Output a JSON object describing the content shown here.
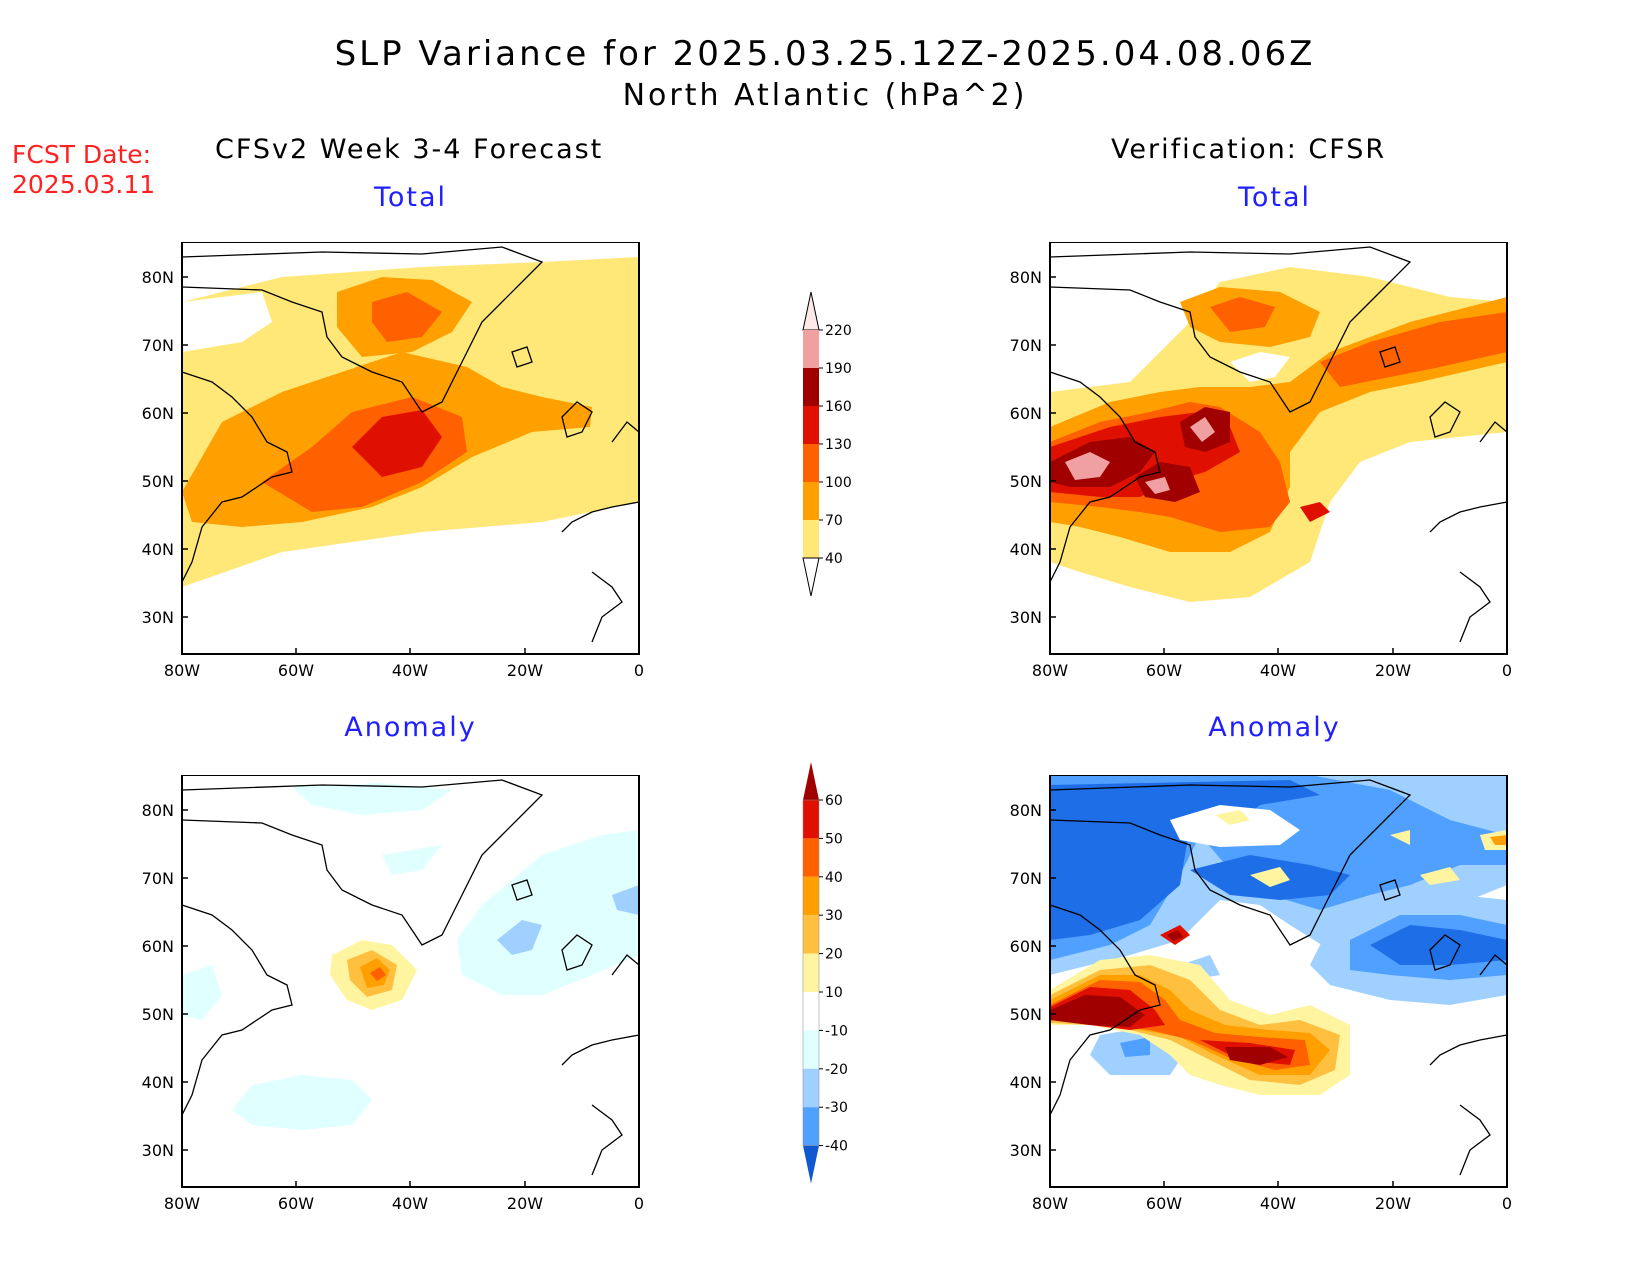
{
  "header": {
    "title": "SLP Variance for 2025.03.25.12Z-2025.04.08.06Z",
    "subtitle": "North Atlantic (hPa^2)"
  },
  "fcst": {
    "line1": "FCST Date:",
    "line2": "2025.03.11"
  },
  "columns": {
    "left": "CFSv2 Week 3-4 Forecast",
    "right": "Verification: CFSR"
  },
  "panels": {
    "fc_total": {
      "label": "Total"
    },
    "ver_total": {
      "label": "Total"
    },
    "fc_anom": {
      "label": "Anomaly"
    },
    "ver_anom": {
      "label": "Anomaly"
    }
  },
  "axes": {
    "lat_labels": [
      "80N",
      "70N",
      "60N",
      "50N",
      "40N",
      "30N"
    ],
    "lon_labels": [
      "80W",
      "60W",
      "40W",
      "20W",
      "0"
    ]
  },
  "colorbars": {
    "total": {
      "levels": [
        "40",
        "70",
        "100",
        "130",
        "160",
        "190",
        "220"
      ],
      "colors": [
        "#ffe878",
        "#ffa000",
        "#ff6000",
        "#e01000",
        "#a00000",
        "#f0a0a0",
        "#ffe8e8"
      ]
    },
    "anomaly": {
      "levels": [
        "60",
        "50",
        "40",
        "30",
        "20",
        "10",
        "-10",
        "-20",
        "-30",
        "-40"
      ],
      "colors": [
        "#a00000",
        "#e01000",
        "#ff6000",
        "#ffa000",
        "#ffc040",
        "#fff5a0",
        "#ffffff",
        "#e0ffff",
        "#a0d0ff",
        "#50a0ff",
        "#1e6ee8",
        "#1058d0"
      ]
    }
  },
  "palette": {
    "total": {
      "c40": "#ffe878",
      "c70": "#ffa000",
      "c100": "#ff6000",
      "c130": "#e01000",
      "c160": "#a00000",
      "c190": "#f0a0a0",
      "c220": "#ffe8e8"
    },
    "anomaly": {
      "p10": "#fff5a0",
      "p20": "#ffc040",
      "p30": "#ffa000",
      "p40": "#ff6000",
      "p50": "#e01000",
      "p60": "#a00000",
      "n10": "#e0ffff",
      "n20": "#a0d0ff",
      "n30": "#50a0ff",
      "n40": "#1e6ee8"
    }
  }
}
